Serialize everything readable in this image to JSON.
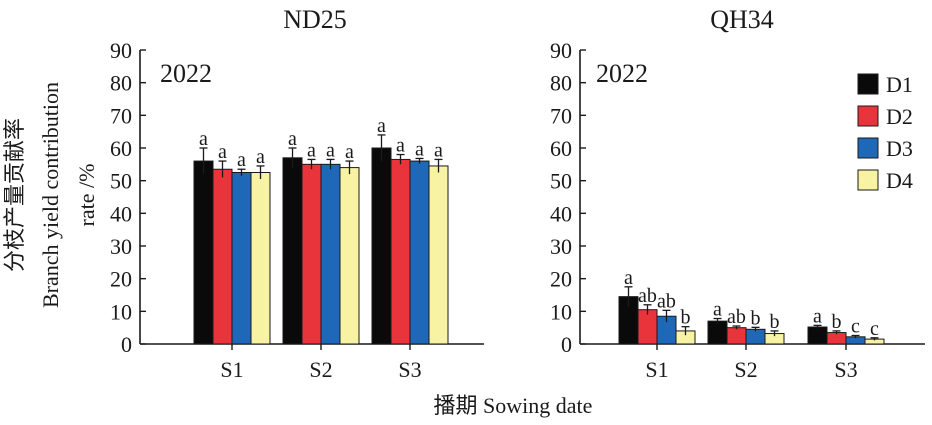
{
  "chart_data": {
    "type": "bar",
    "ylabel_cn": "分枝产量贡献率",
    "ylabel_en_1": "Branch yield contribution",
    "ylabel_en_2": "rate /%",
    "xlabel": "播期 Sowing date",
    "ylim": [
      0,
      90
    ],
    "yticks": [
      "0",
      "10",
      "20",
      "30",
      "40",
      "50",
      "60",
      "70",
      "80",
      "90"
    ],
    "categories": [
      "S1",
      "S2",
      "S3"
    ],
    "legend": {
      "placement": "top-right",
      "entries": [
        "D1",
        "D2",
        "D3",
        "D4"
      ]
    },
    "colors": {
      "D1": "#0a0a0a",
      "D2": "#e8343a",
      "D3": "#1f68b8",
      "D4": "#f8f3a2"
    },
    "panels": [
      {
        "title": "ND25",
        "year": "2022",
        "series": [
          {
            "name": "D1",
            "values": [
              56,
              57,
              60
            ],
            "errors": [
              4,
              3,
              4
            ],
            "labels": [
              "a",
              "a",
              "a"
            ]
          },
          {
            "name": "D2",
            "values": [
              53.5,
              55,
              56.5
            ],
            "errors": [
              2.5,
              1.5,
              1.5
            ],
            "labels": [
              "a",
              "a",
              "a"
            ]
          },
          {
            "name": "D3",
            "values": [
              52.5,
              55,
              56
            ],
            "errors": [
              1,
              1.5,
              0.8
            ],
            "labels": [
              "a",
              "a",
              "a"
            ]
          },
          {
            "name": "D4",
            "values": [
              52.5,
              54,
              54.5
            ],
            "errors": [
              2,
              2,
              2
            ],
            "labels": [
              "a",
              "a",
              "a"
            ]
          }
        ]
      },
      {
        "title": "QH34",
        "year": "2022",
        "series": [
          {
            "name": "D1",
            "values": [
              14.5,
              7,
              5.2
            ],
            "errors": [
              3,
              0.8,
              0.5
            ],
            "labels": [
              "a",
              "a",
              "a"
            ]
          },
          {
            "name": "D2",
            "values": [
              10.5,
              5,
              3.5
            ],
            "errors": [
              1.5,
              0.5,
              0.5
            ],
            "labels": [
              "ab",
              "ab",
              "b"
            ]
          },
          {
            "name": "D3",
            "values": [
              8.5,
              4.5,
              2.2
            ],
            "errors": [
              1.8,
              0.6,
              0.4
            ],
            "labels": [
              "ab",
              "b",
              "c"
            ]
          },
          {
            "name": "D4",
            "values": [
              4,
              3.2,
              1.5
            ],
            "errors": [
              1.3,
              0.8,
              0.4
            ],
            "labels": [
              "b",
              "b",
              "c"
            ]
          }
        ]
      }
    ]
  }
}
